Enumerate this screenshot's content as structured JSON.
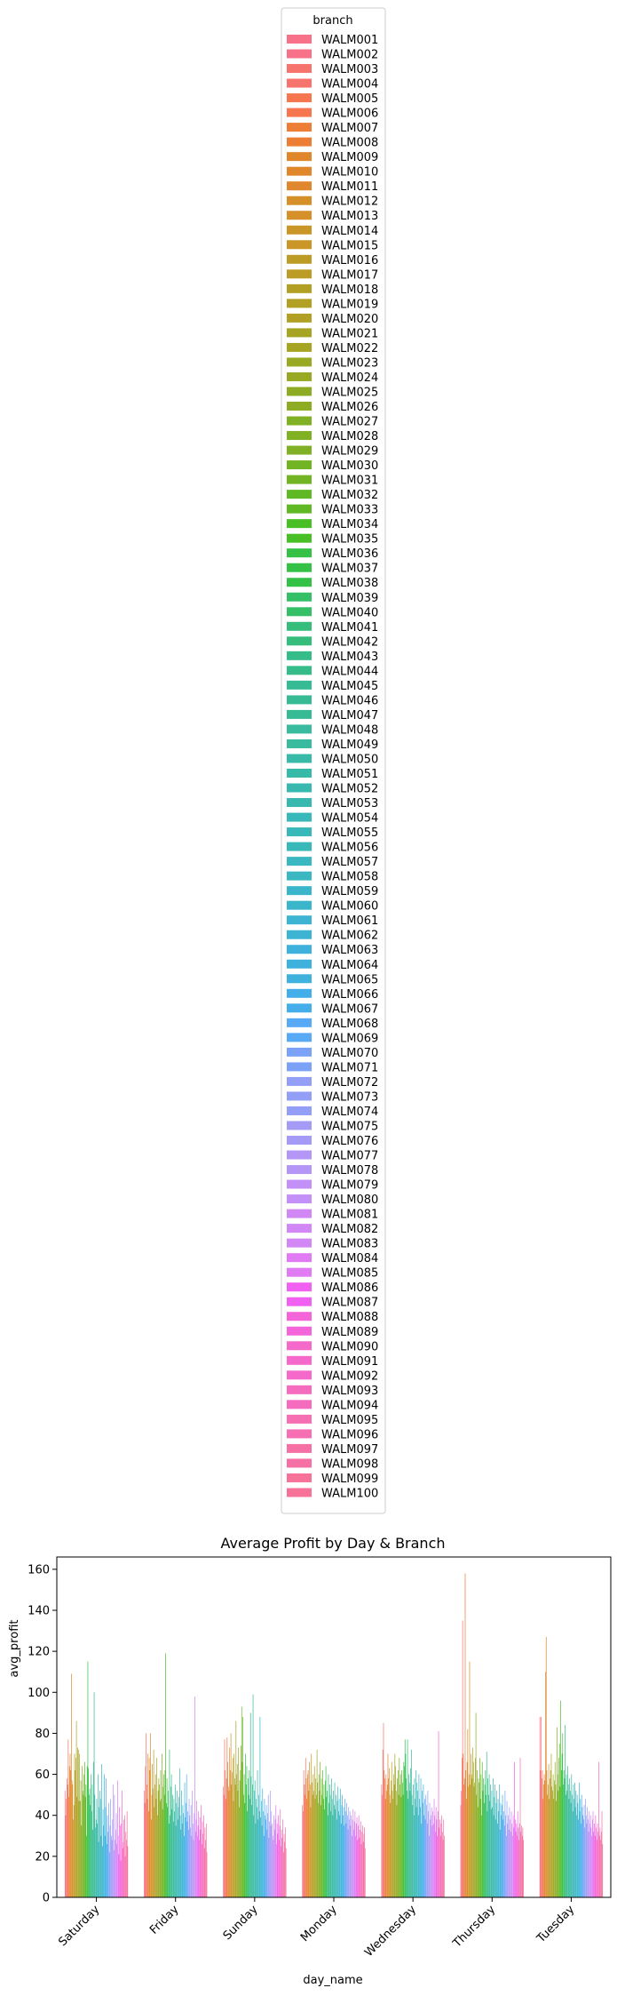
{
  "chart_data": {
    "type": "bar",
    "title": "Average Profit by Day & Branch",
    "xlabel": "day_name",
    "ylabel": "avg_profit",
    "ylim": [
      0,
      166
    ],
    "yticks": [
      0,
      20,
      40,
      60,
      80,
      100,
      120,
      140,
      160
    ],
    "grid": false,
    "legend": {
      "title": "branch",
      "placement": "top-center"
    },
    "categories": [
      "Saturday",
      "Friday",
      "Sunday",
      "Monday",
      "Wednesday",
      "Thursday",
      "Tuesday"
    ],
    "branches": [
      "WALM001",
      "WALM002",
      "WALM003",
      "WALM004",
      "WALM005",
      "WALM006",
      "WALM007",
      "WALM008",
      "WALM009",
      "WALM010",
      "WALM011",
      "WALM012",
      "WALM013",
      "WALM014",
      "WALM015",
      "WALM016",
      "WALM017",
      "WALM018",
      "WALM019",
      "WALM020",
      "WALM021",
      "WALM022",
      "WALM023",
      "WALM024",
      "WALM025",
      "WALM026",
      "WALM027",
      "WALM028",
      "WALM029",
      "WALM030",
      "WALM031",
      "WALM032",
      "WALM033",
      "WALM034",
      "WALM035",
      "WALM036",
      "WALM037",
      "WALM038",
      "WALM039",
      "WALM040",
      "WALM041",
      "WALM042",
      "WALM043",
      "WALM044",
      "WALM045",
      "WALM046",
      "WALM047",
      "WALM048",
      "WALM049",
      "WALM050",
      "WALM051",
      "WALM052",
      "WALM053",
      "WALM054",
      "WALM055",
      "WALM056",
      "WALM057",
      "WALM058",
      "WALM059",
      "WALM060",
      "WALM061",
      "WALM062",
      "WALM063",
      "WALM064",
      "WALM065",
      "WALM066",
      "WALM067",
      "WALM068",
      "WALM069",
      "WALM070",
      "WALM071",
      "WALM072",
      "WALM073",
      "WALM074",
      "WALM075",
      "WALM076",
      "WALM077",
      "WALM078",
      "WALM079",
      "WALM080",
      "WALM081",
      "WALM082",
      "WALM083",
      "WALM084",
      "WALM085",
      "WALM086",
      "WALM087",
      "WALM088",
      "WALM089",
      "WALM090",
      "WALM091",
      "WALM092",
      "WALM093",
      "WALM094",
      "WALM095",
      "WALM096",
      "WALM097",
      "WALM098",
      "WALM099",
      "WALM100"
    ],
    "values": {
      "Saturday": [
        52,
        40,
        48,
        58,
        55,
        77,
        49,
        64,
        70,
        62,
        109,
        57,
        55,
        38,
        45,
        70,
        62,
        68,
        86,
        49,
        73,
        72,
        47,
        70,
        47,
        57,
        35,
        64,
        52,
        50,
        60,
        66,
        49,
        55,
        30,
        64,
        115,
        63,
        50,
        53,
        45,
        60,
        42,
        55,
        33,
        66,
        100,
        50,
        34,
        38,
        48,
        36,
        60,
        27,
        44,
        52,
        48,
        30,
        65,
        25,
        43,
        35,
        60,
        30,
        44,
        58,
        26,
        40,
        32,
        46,
        22,
        35,
        48,
        30,
        28,
        38,
        55,
        23,
        50,
        28,
        33,
        41,
        26,
        57,
        30,
        21,
        44,
        35,
        18,
        36,
        52,
        24,
        27,
        38,
        40,
        20,
        32,
        28,
        42,
        25
      ],
      "Friday": [
        52,
        46,
        64,
        80,
        55,
        48,
        70,
        42,
        68,
        62,
        80,
        38,
        50,
        65,
        53,
        72,
        44,
        55,
        60,
        48,
        68,
        40,
        52,
        58,
        55,
        47,
        62,
        48,
        70,
        43,
        54,
        60,
        50,
        62,
        119,
        46,
        58,
        44,
        52,
        36,
        72,
        40,
        54,
        60,
        43,
        50,
        37,
        48,
        42,
        55,
        35,
        46,
        52,
        38,
        44,
        49,
        63,
        40,
        33,
        52,
        36,
        45,
        41,
        30,
        56,
        39,
        46,
        60,
        37,
        42,
        33,
        48,
        40,
        34,
        45,
        30,
        52,
        36,
        28,
        41,
        98,
        32,
        38,
        47,
        30,
        35,
        42,
        28,
        39,
        33,
        45,
        26,
        37,
        31,
        40,
        24,
        34,
        28,
        36,
        22
      ],
      "Sunday": [
        54,
        50,
        77,
        62,
        48,
        58,
        78,
        66,
        54,
        52,
        73,
        62,
        80,
        55,
        61,
        68,
        47,
        70,
        58,
        55,
        86,
        60,
        65,
        52,
        73,
        44,
        57,
        62,
        74,
        93,
        66,
        88,
        50,
        60,
        46,
        70,
        55,
        64,
        42,
        58,
        50,
        62,
        48,
        90,
        59,
        45,
        55,
        99,
        40,
        52,
        57,
        36,
        48,
        44,
        62,
        38,
        50,
        42,
        88,
        39,
        47,
        35,
        53,
        42,
        30,
        48,
        40,
        38,
        45,
        33,
        41,
        50,
        29,
        37,
        52,
        35,
        42,
        36,
        30,
        28,
        40,
        33,
        38,
        45,
        26,
        36,
        31,
        40,
        28,
        35,
        43,
        25,
        33,
        29,
        38,
        22,
        31,
        27,
        34,
        24
      ],
      "Monday": [
        45,
        42,
        62,
        55,
        50,
        68,
        58,
        48,
        60,
        62,
        52,
        66,
        55,
        44,
        70,
        56,
        50,
        60,
        52,
        64,
        48,
        58,
        50,
        72,
        56,
        46,
        60,
        52,
        66,
        45,
        58,
        50,
        62,
        48,
        55,
        43,
        57,
        64,
        49,
        52,
        40,
        60,
        46,
        55,
        50,
        42,
        58,
        48,
        40,
        52,
        45,
        56,
        43,
        50,
        38,
        47,
        54,
        42,
        48,
        40,
        53,
        36,
        45,
        50,
        40,
        44,
        35,
        48,
        42,
        36,
        46,
        40,
        33,
        44,
        38,
        42,
        35,
        40,
        30,
        38,
        43,
        33,
        37,
        42,
        30,
        36,
        39,
        28,
        35,
        40,
        29,
        33,
        37,
        26,
        32,
        35,
        27,
        31,
        34,
        24
      ],
      "Wednesday": [
        55,
        50,
        72,
        85,
        62,
        58,
        48,
        60,
        52,
        55,
        70,
        58,
        63,
        50,
        46,
        57,
        66,
        52,
        48,
        60,
        55,
        70,
        64,
        52,
        45,
        58,
        62,
        50,
        68,
        55,
        60,
        49,
        62,
        56,
        50,
        66,
        64,
        77,
        70,
        58,
        52,
        77,
        48,
        60,
        56,
        52,
        63,
        72,
        50,
        45,
        55,
        40,
        58,
        48,
        62,
        44,
        56,
        52,
        40,
        60,
        48,
        44,
        58,
        36,
        52,
        46,
        55,
        40,
        48,
        38,
        50,
        45,
        36,
        52,
        42,
        30,
        46,
        38,
        40,
        44,
        35,
        42,
        36,
        48,
        40,
        32,
        44,
        38,
        30,
        42,
        81,
        34,
        38,
        30,
        36,
        40,
        32,
        28,
        38,
        30
      ],
      "Thursday": [
        45,
        52,
        68,
        135,
        70,
        55,
        58,
        158,
        62,
        48,
        66,
        82,
        54,
        60,
        115,
        55,
        70,
        60,
        58,
        73,
        66,
        54,
        56,
        68,
        90,
        50,
        62,
        44,
        58,
        56,
        68,
        48,
        60,
        40,
        66,
        52,
        58,
        46,
        55,
        62,
        50,
        71,
        42,
        58,
        50,
        60,
        47,
        55,
        43,
        52,
        44,
        58,
        40,
        49,
        55,
        38,
        46,
        52,
        36,
        48,
        42,
        55,
        33,
        46,
        40,
        45,
        50,
        38,
        42,
        35,
        52,
        40,
        30,
        47,
        36,
        40,
        33,
        44,
        38,
        32,
        42,
        36,
        30,
        40,
        34,
        66,
        38,
        32,
        36,
        30,
        42,
        34,
        28,
        36,
        68,
        32,
        35,
        30,
        34,
        28
      ],
      "Tuesday": [
        88,
        62,
        88,
        58,
        62,
        48,
        55,
        60,
        57,
        110,
        127,
        62,
        50,
        55,
        65,
        48,
        58,
        62,
        70,
        54,
        52,
        60,
        48,
        57,
        66,
        55,
        47,
        83,
        60,
        52,
        68,
        75,
        54,
        96,
        62,
        70,
        80,
        55,
        62,
        58,
        84,
        50,
        60,
        52,
        64,
        55,
        48,
        58,
        52,
        46,
        60,
        50,
        42,
        55,
        48,
        56,
        44,
        52,
        40,
        50,
        46,
        38,
        56,
        42,
        48,
        36,
        50,
        44,
        40,
        38,
        45,
        34,
        48,
        40,
        36,
        44,
        38,
        32,
        42,
        36,
        40,
        34,
        30,
        38,
        42,
        32,
        36,
        30,
        40,
        34,
        28,
        36,
        32,
        66,
        30,
        34,
        28,
        32,
        42,
        26
      ]
    },
    "colors": [
      "#f77189",
      "#f7736d",
      "#f6764f",
      "#ec7f35",
      "#e0872e",
      "#d59029",
      "#c99627",
      "#bd9c25",
      "#b2a024",
      "#a6a523",
      "#9aa923",
      "#8dac23",
      "#80b023",
      "#71b424",
      "#5fb924",
      "#47bf25",
      "#35c046",
      "#35bf67",
      "#36bd7b",
      "#36bc89",
      "#37bb95",
      "#38bb9f",
      "#38baa8",
      "#39b8b0",
      "#39b8b9",
      "#3ab7c1",
      "#3bb5c9",
      "#3cb4d2",
      "#3eb2dd",
      "#44aeeb",
      "#58a9f6",
      "#7ba2f7",
      "#939ef6",
      "#a59bf6",
      "#b396f6",
      "#c290f6",
      "#d187f4",
      "#e07bf3",
      "#f161f1",
      "#f465d9",
      "#f569cb",
      "#f56cbe",
      "#f56fb2",
      "#f570a5",
      "#f67298"
    ]
  }
}
